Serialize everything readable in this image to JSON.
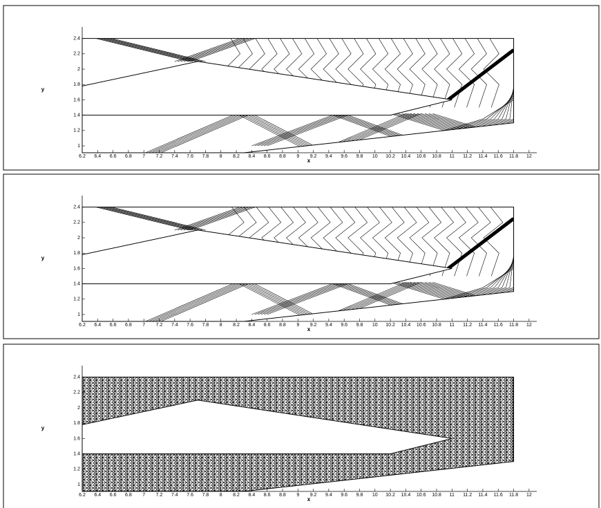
{
  "chart_data": [
    {
      "type": "contour",
      "xlabel": "x",
      "ylabel": "y",
      "xlim": [
        6.2,
        12.1
      ],
      "ylim": [
        0.91,
        2.55
      ],
      "xticks": [
        6.2,
        6.4,
        6.6,
        6.8,
        7,
        7.2,
        7.4,
        7.6,
        7.8,
        8,
        8.2,
        8.4,
        8.6,
        8.8,
        9,
        9.2,
        9.4,
        9.6,
        9.8,
        10,
        10.2,
        10.4,
        10.6,
        10.8,
        11,
        11.2,
        11.4,
        11.6,
        11.8,
        12
      ],
      "yticks": [
        1,
        1.2,
        1.4,
        1.6,
        1.8,
        2,
        2.2,
        2.4
      ]
    },
    {
      "type": "contour",
      "xlabel": "x",
      "ylabel": "y",
      "xlim": [
        6.2,
        12.1
      ],
      "ylim": [
        0.91,
        2.55
      ],
      "xticks": [
        6.2,
        6.4,
        6.6,
        6.8,
        7,
        7.2,
        7.4,
        7.6,
        7.8,
        8,
        8.2,
        8.4,
        8.6,
        8.8,
        9,
        9.2,
        9.4,
        9.6,
        9.8,
        10,
        10.2,
        10.4,
        10.6,
        10.8,
        11,
        11.2,
        11.4,
        11.6,
        11.8,
        12
      ],
      "yticks": [
        1,
        1.2,
        1.4,
        1.6,
        1.8,
        2,
        2.2,
        2.4
      ]
    },
    {
      "type": "mesh",
      "xlabel": "x",
      "ylabel": "y",
      "xlim": [
        6.2,
        12.1
      ],
      "ylim": [
        0.91,
        2.55
      ],
      "xticks": [
        6.2,
        6.4,
        6.6,
        6.8,
        7,
        7.2,
        7.4,
        7.6,
        7.8,
        8,
        8.2,
        8.4,
        8.6,
        8.8,
        9,
        9.2,
        9.4,
        9.6,
        9.8,
        10,
        10.2,
        10.4,
        10.6,
        10.8,
        11,
        11.2,
        11.4,
        11.6,
        11.8,
        12
      ],
      "yticks": [
        1,
        1.2,
        1.4,
        1.6,
        1.8,
        2,
        2.2,
        2.4
      ]
    }
  ]
}
